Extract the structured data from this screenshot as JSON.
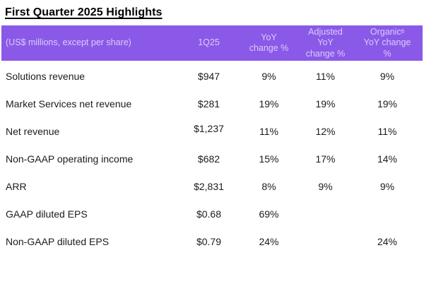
{
  "title": "First Quarter 2025 Highlights",
  "colors": {
    "header_bg": "#8B59E8",
    "header_text": "#DACDF7",
    "body_text": "#1B1B1B"
  },
  "table": {
    "unit_note": "(US$ millions, except per share)",
    "columns": {
      "period": "1Q25",
      "yoy": {
        "l1": "YoY",
        "l2": "change %"
      },
      "adjusted": {
        "l1": "Adjusted",
        "l2": "YoY",
        "l3": "change %"
      },
      "organic": {
        "l1": "Organic",
        "sup": "6",
        "l2": "YoY change",
        "l3": "%"
      }
    },
    "rows": [
      {
        "label": "Solutions revenue",
        "value": "$947",
        "yoy": "9%",
        "adjusted": "11%",
        "organic": "9%"
      },
      {
        "label": "Market Services net revenue",
        "value": "$281",
        "yoy": "19%",
        "adjusted": "19%",
        "organic": "19%"
      },
      {
        "label": "Net revenue",
        "value": "$1,237",
        "yoy": "11%",
        "adjusted": "12%",
        "organic": "11%"
      },
      {
        "label": "Non-GAAP operating income",
        "value": "$682",
        "yoy": "15%",
        "adjusted": "17%",
        "organic": "14%"
      },
      {
        "label": "ARR",
        "value": "$2,831",
        "yoy": "8%",
        "adjusted": "9%",
        "organic": "9%"
      },
      {
        "label": "GAAP diluted EPS",
        "value": "$0.68",
        "yoy": "69%",
        "adjusted": "",
        "organic": ""
      },
      {
        "label": "Non-GAAP diluted EPS",
        "value": "$0.79",
        "yoy": "24%",
        "adjusted": "",
        "organic": "24%"
      }
    ]
  }
}
